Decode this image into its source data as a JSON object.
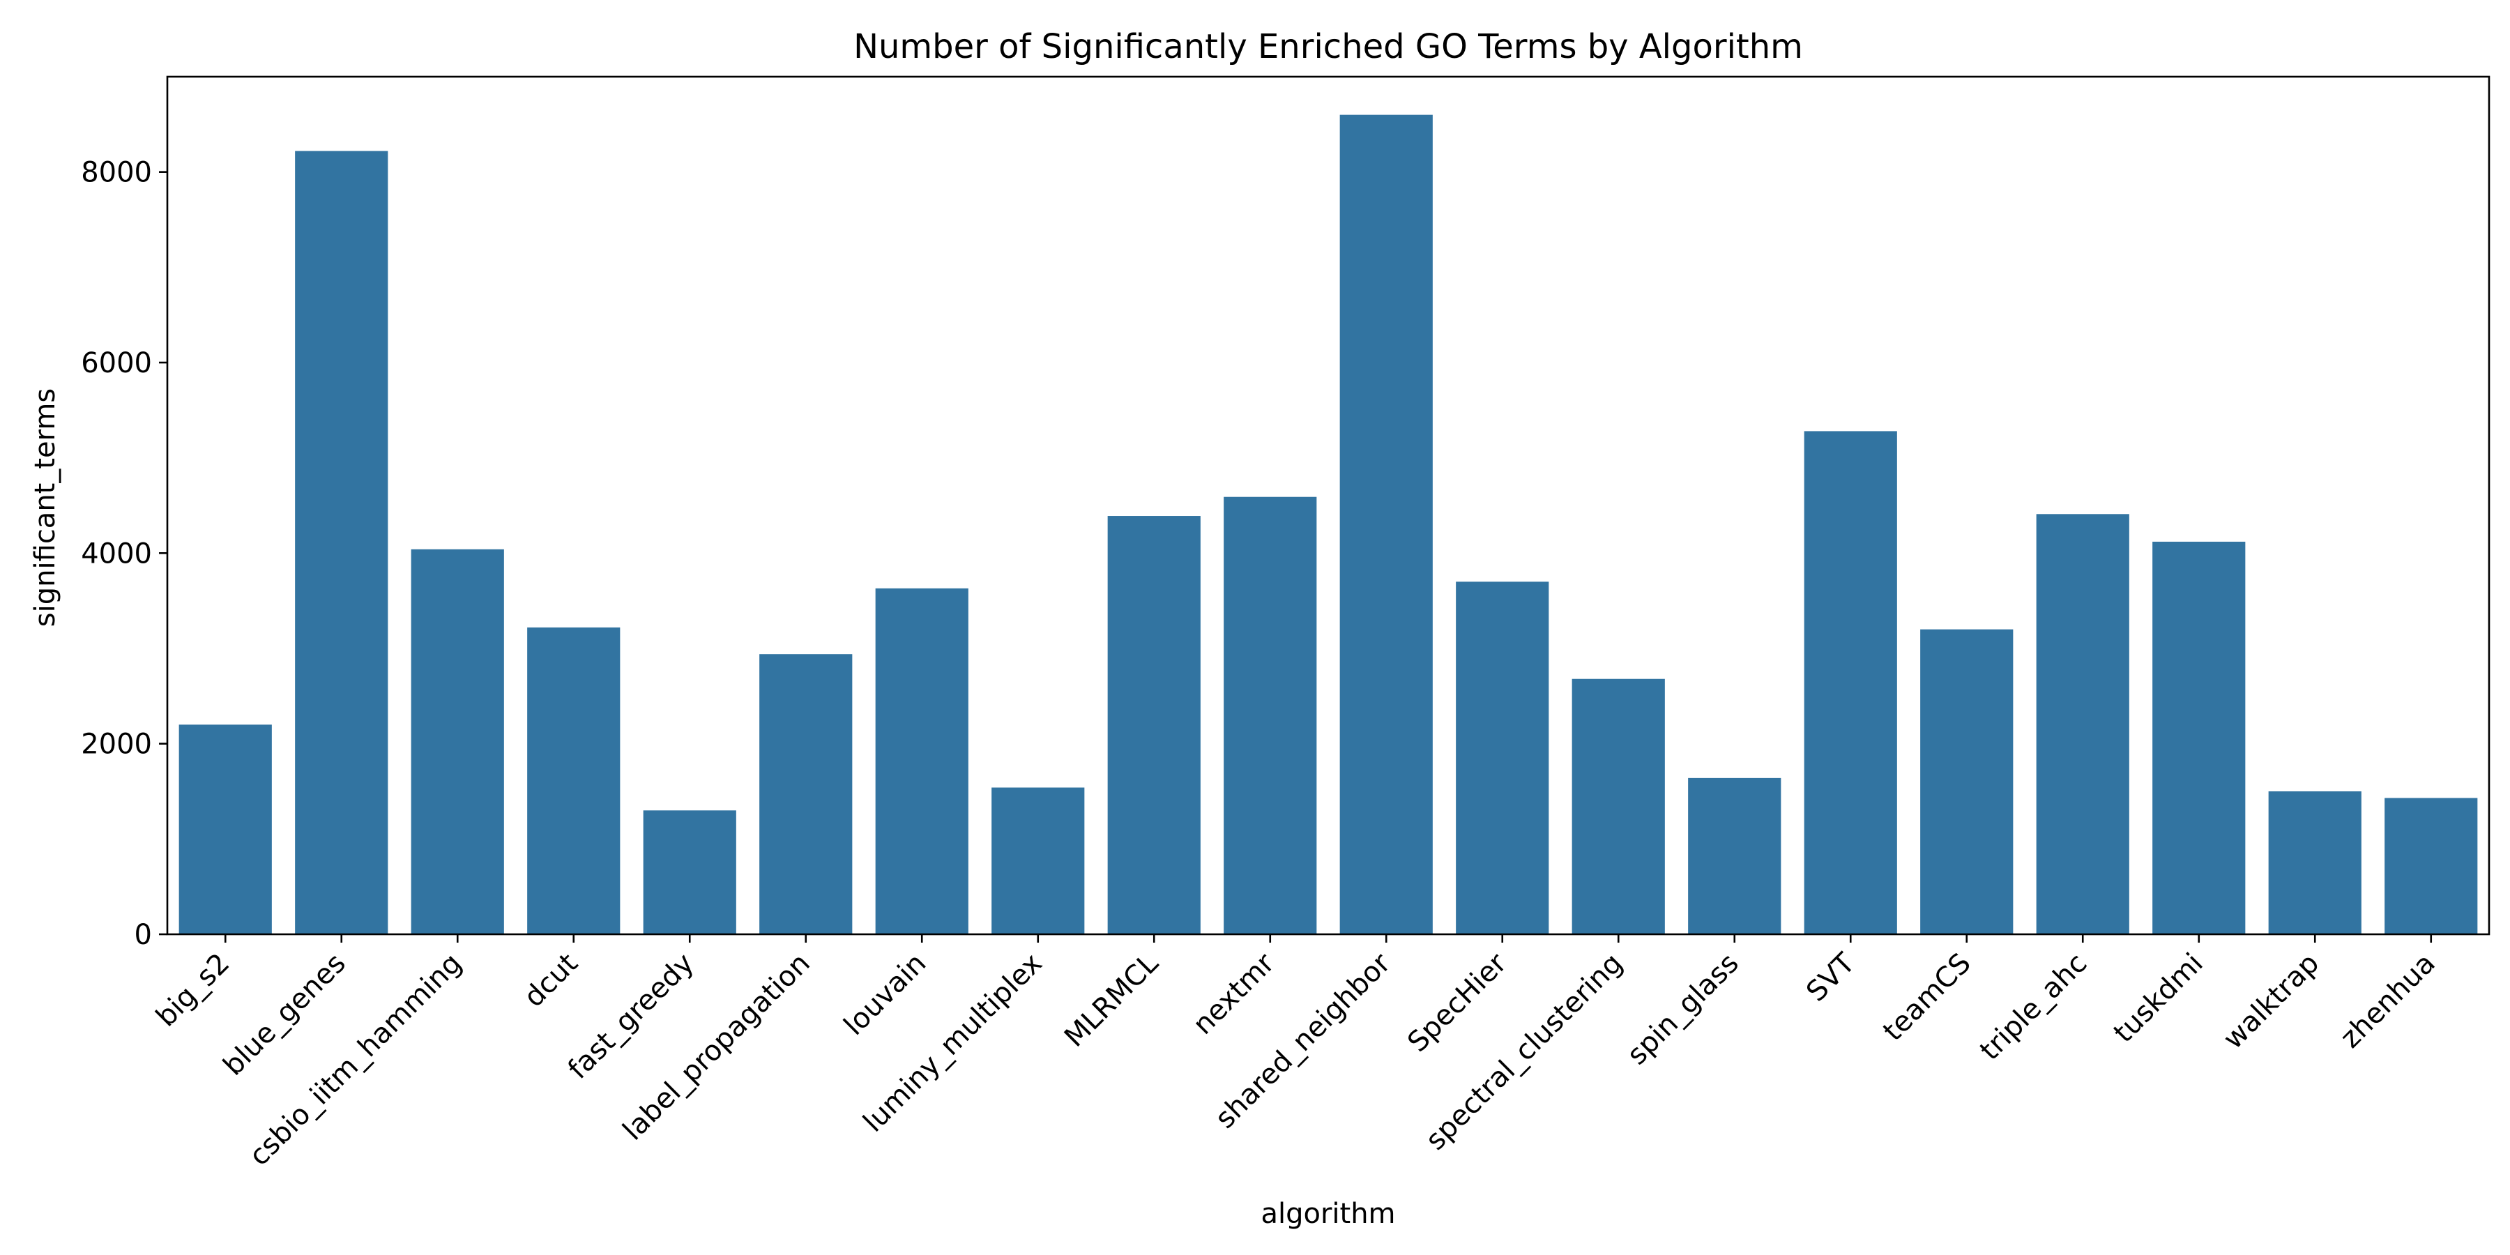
{
  "chart_data": {
    "type": "bar",
    "title": "Number of Significantly Enriched GO Terms by Algorithm",
    "xlabel": "algorithm",
    "ylabel": "significant_terms",
    "categories": [
      "big_s2",
      "blue_genes",
      "csbio_iitm_hamming",
      "dcut",
      "fast_greedy",
      "label_propagation",
      "louvain",
      "luminy_multiplex",
      "MLRMCL",
      "nextmr",
      "shared_neighbor",
      "SpecHier",
      "spectral_clustering",
      "spin_glass",
      "SVT",
      "teamCS",
      "triple_ahc",
      "tuskdmi",
      "walktrap",
      "zhenhua"
    ],
    "values": [
      2200,
      8220,
      4040,
      3220,
      1300,
      2940,
      3630,
      1540,
      4390,
      4590,
      8600,
      3700,
      2680,
      1640,
      5280,
      3200,
      4410,
      4120,
      1500,
      1430
    ],
    "ylim": [
      0,
      9000
    ],
    "yticks": [
      0,
      2000,
      4000,
      6000,
      8000
    ],
    "grid": false,
    "legend": "none",
    "bar_color": "#3274a1"
  }
}
